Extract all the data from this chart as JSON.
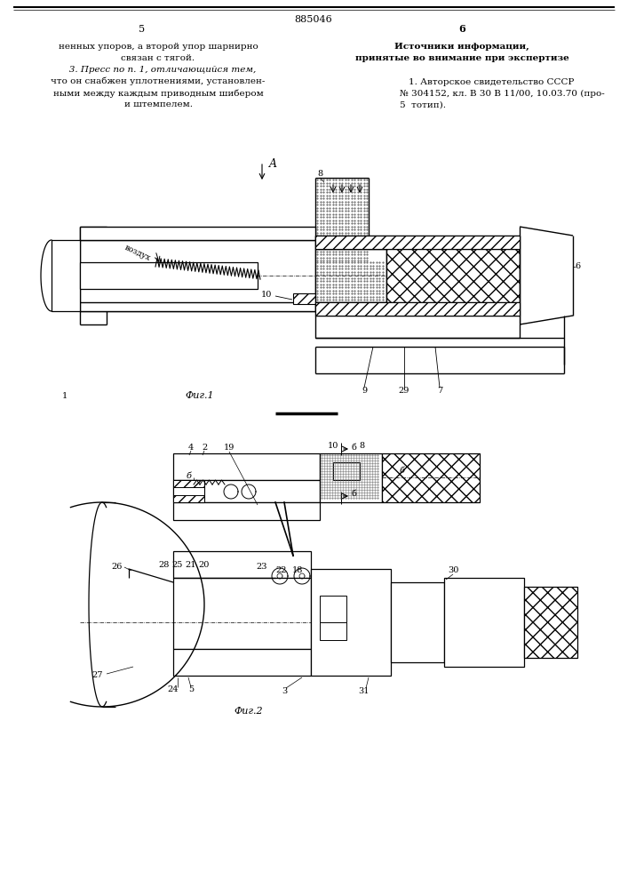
{
  "page_number": "885046",
  "bg_color": "#ffffff",
  "text_left": [
    "ненных упоров, а второй упор шарнирно",
    "связан с тягой.",
    "   3. Пресс по п. 1, отличающийся тем,",
    "что он снабжен уплотнениями, установлен-",
    "ными между каждым приводным шибером",
    "и штемпелем."
  ],
  "text_right_title": "Источники информации,",
  "text_right_subtitle": "принятые во внимание при экспертизе",
  "text_right_body": [
    "1. Авторское свидетельство СССР",
    "№ 304152, кл. В 30 В 11/00, 10.03.70 (про-",
    "5  тотип)."
  ],
  "fig1_caption": "Фиг.1",
  "fig2_caption": "Фиг.2"
}
